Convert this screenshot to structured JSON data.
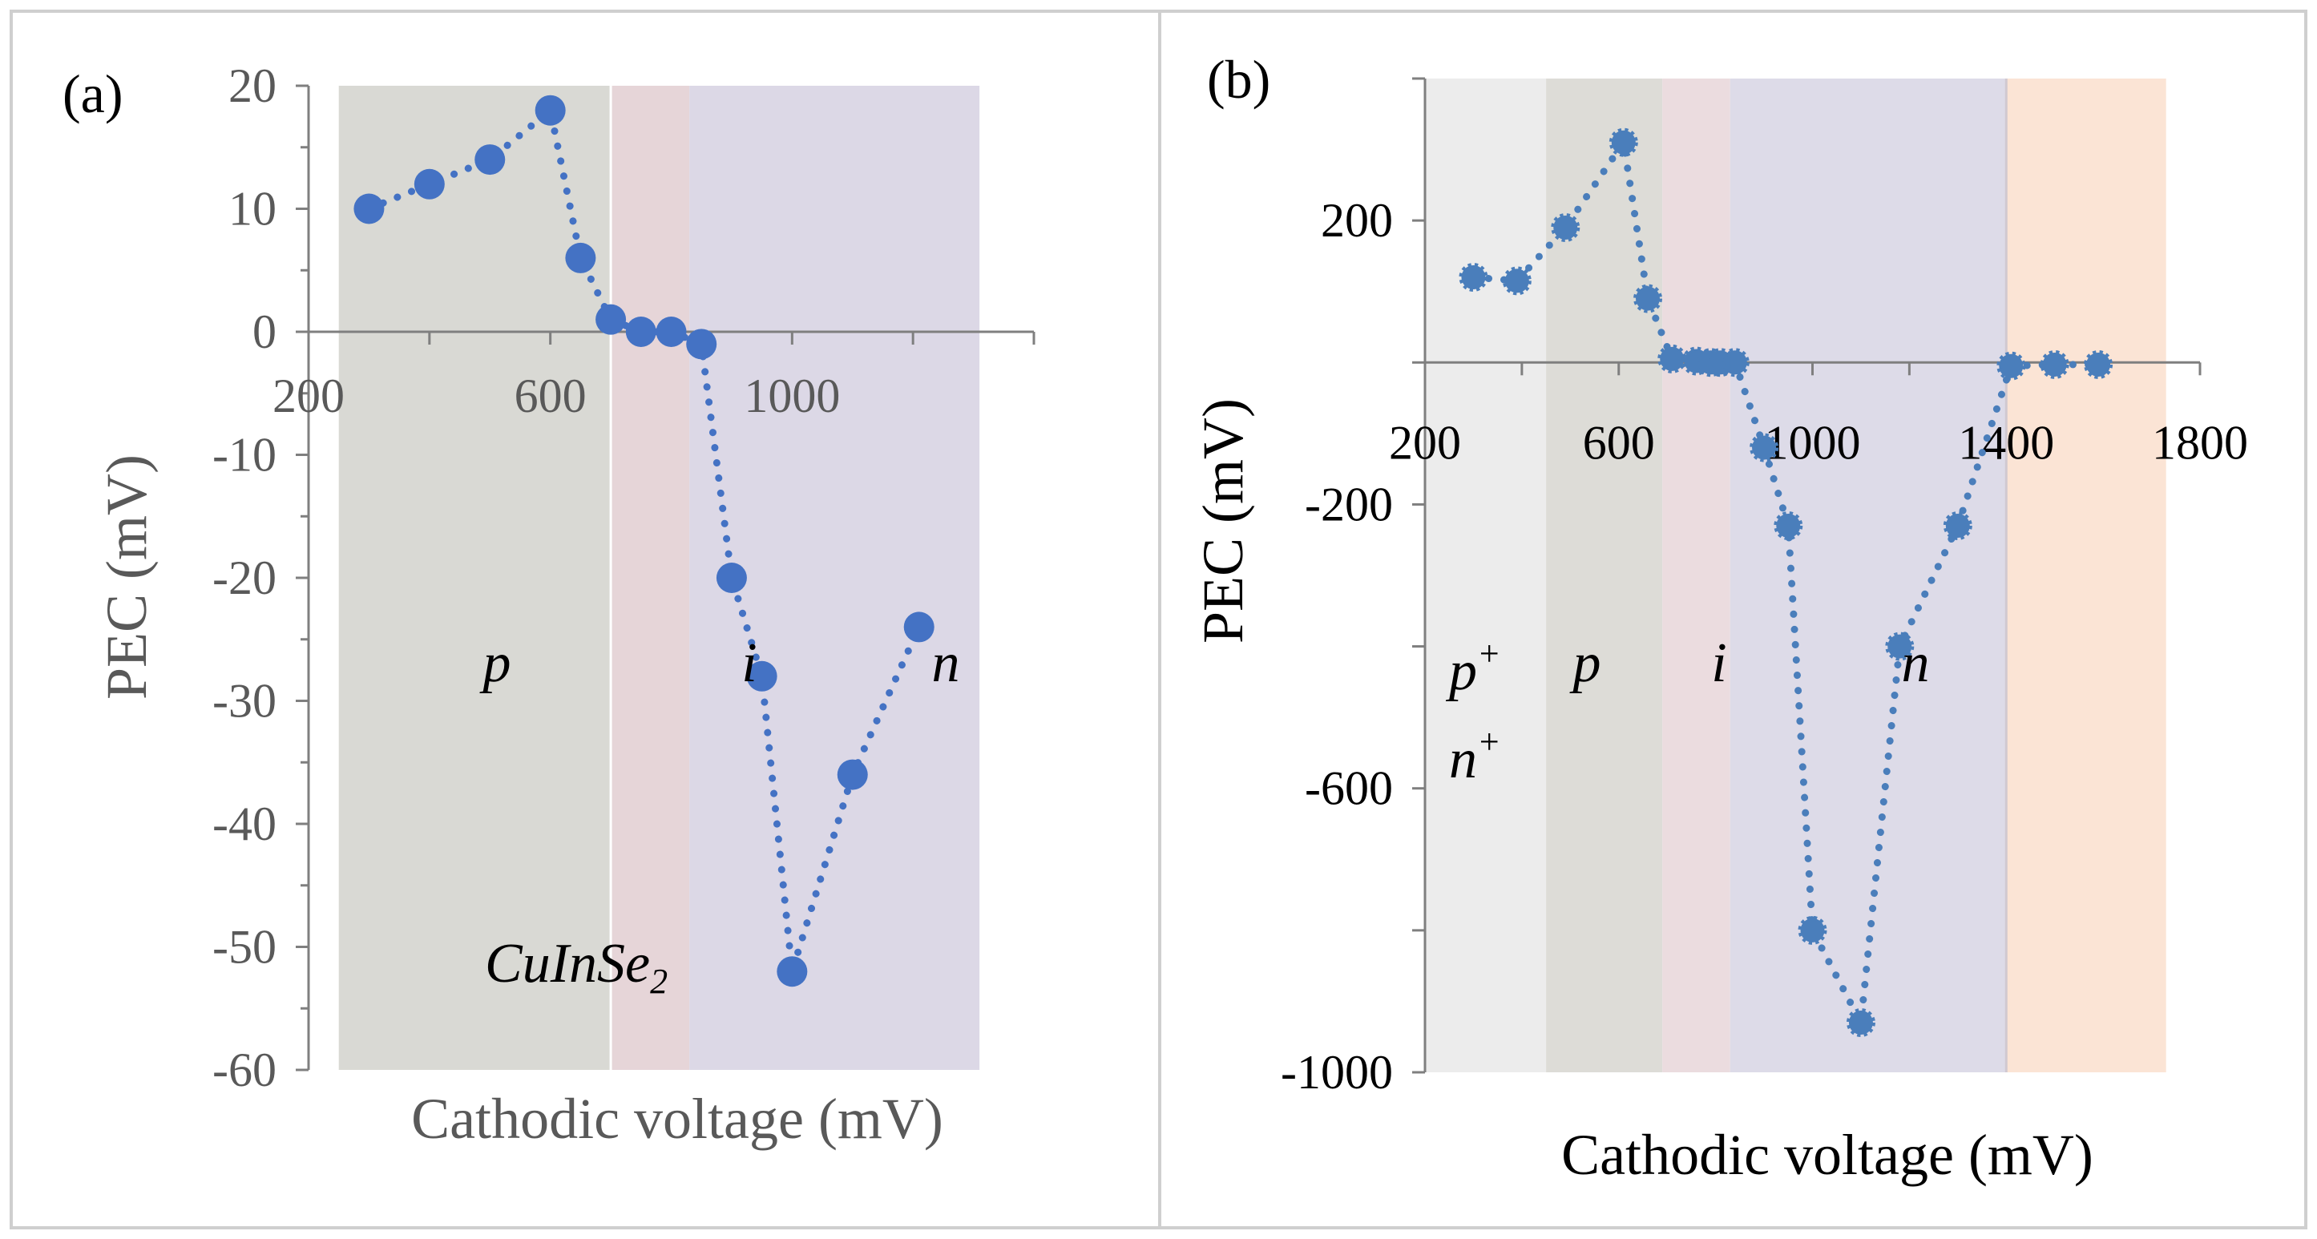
{
  "chart_data": [
    {
      "panel_label": "(a)",
      "type": "scatter",
      "xlabel": "Cathodic voltage (mV)",
      "ylabel": "PEC (mV)",
      "xlim": [
        200,
        1400
      ],
      "ylim": [
        -60,
        20
      ],
      "x_ticks": [
        200,
        600,
        1000
      ],
      "y_ticks": [
        -60,
        -50,
        -40,
        -30,
        -20,
        -10,
        0,
        10,
        20
      ],
      "grid": false,
      "annotation": "CuInSe",
      "annotation_subscript": "2",
      "regions": [
        {
          "label": "p",
          "from": 250,
          "to": 700,
          "color": "#d9d9d4"
        },
        {
          "label": "i",
          "from": 700,
          "to": 830,
          "color": "#e6d5d8"
        },
        {
          "label": "n",
          "from": 830,
          "to": 1310,
          "color": "#dcd8e6"
        }
      ],
      "series": [
        {
          "color": "#4472c4",
          "x": [
            300,
            400,
            500,
            600,
            650,
            700,
            750,
            800,
            850,
            900,
            950,
            1000,
            1100,
            1210
          ],
          "y": [
            10,
            12,
            14,
            18,
            6,
            1,
            0,
            0,
            -1,
            -20,
            -28,
            -52,
            -36,
            -24
          ]
        }
      ]
    },
    {
      "panel_label": "(b)",
      "type": "scatter",
      "xlabel": "Cathodic voltage (mV)",
      "ylabel": "PEC (mV)",
      "xlim": [
        200,
        1800
      ],
      "ylim": [
        -1000,
        400
      ],
      "x_ticks": [
        200,
        600,
        1000,
        1400,
        1800
      ],
      "y_ticks": [
        -1000,
        -600,
        -200,
        200
      ],
      "grid": false,
      "regions": [
        {
          "label": "p",
          "superscript": "+",
          "label2": "n",
          "superscript2": "+",
          "from": 200,
          "to": 450,
          "color": "#ececec"
        },
        {
          "label": "p",
          "from": 450,
          "to": 690,
          "color": "#dddcd7"
        },
        {
          "label": "i",
          "from": 690,
          "to": 830,
          "color": "#ebdcdf"
        },
        {
          "label": "n",
          "from": 830,
          "to": 1400,
          "color": "#dddbe8"
        },
        {
          "label": "",
          "from": 1400,
          "to": 1730,
          "color": "#fbe4d5"
        }
      ],
      "series": [
        {
          "color": "#4a7ebb",
          "x": [
            300,
            390,
            490,
            610,
            660,
            710,
            760,
            790,
            810,
            840,
            900,
            950,
            1000,
            1100,
            1180,
            1300,
            1410,
            1500,
            1590
          ],
          "y": [
            120,
            115,
            190,
            310,
            90,
            5,
            2,
            0,
            0,
            0,
            -120,
            -230,
            -800,
            -930,
            -400,
            -230,
            -5,
            -3,
            -3
          ]
        }
      ]
    }
  ]
}
